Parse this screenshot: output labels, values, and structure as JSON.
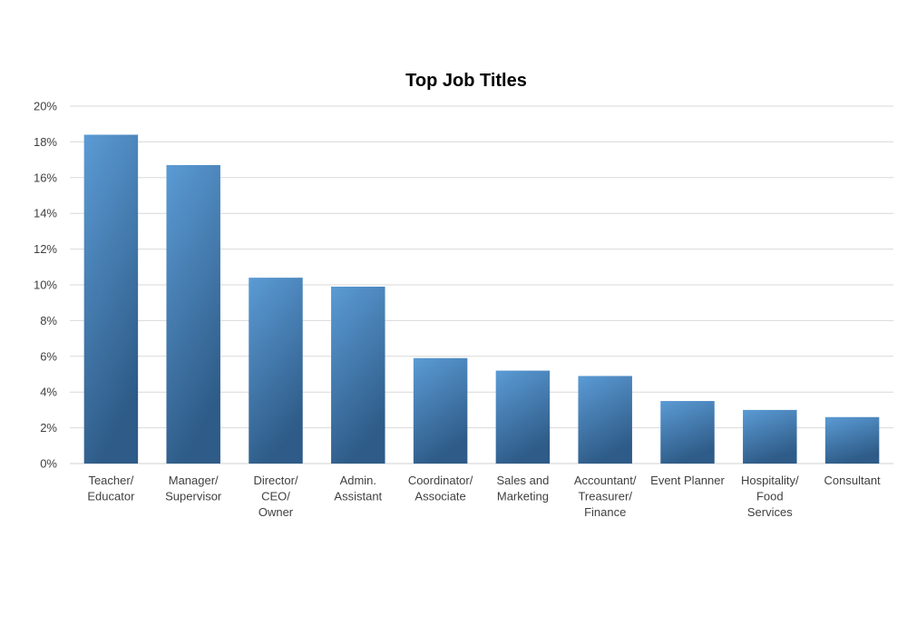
{
  "chart_data": {
    "type": "bar",
    "title": "Top Job Titles",
    "xlabel": "",
    "ylabel": "",
    "categories": [
      [
        "Teacher/",
        "Educator"
      ],
      [
        "Manager/",
        "Supervisor"
      ],
      [
        "Director/",
        "CEO/",
        "Owner"
      ],
      [
        "Admin.",
        "Assistant"
      ],
      [
        "Coordinator/",
        "Associate"
      ],
      [
        "Sales and",
        "Marketing"
      ],
      [
        "Accountant/",
        "Treasurer/",
        "Finance"
      ],
      [
        "Event Planner"
      ],
      [
        "Hospitality/",
        "Food",
        "Services"
      ],
      [
        "Consultant"
      ]
    ],
    "values": [
      18.4,
      16.7,
      10.4,
      9.9,
      5.9,
      5.2,
      4.9,
      3.5,
      3.0,
      2.6
    ],
    "ylim": [
      0,
      20
    ],
    "yticks": [
      0,
      2,
      4,
      6,
      8,
      10,
      12,
      14,
      16,
      18,
      20
    ],
    "ytick_labels": [
      "0%",
      "2%",
      "4%",
      "6%",
      "8%",
      "10%",
      "12%",
      "14%",
      "16%",
      "18%",
      "20%"
    ],
    "grid": true,
    "legend": "none",
    "colors": {
      "bar_top": "#5b9bd5",
      "bar_bottom": "#2e5b87",
      "grid": "#d9d9d9"
    }
  }
}
